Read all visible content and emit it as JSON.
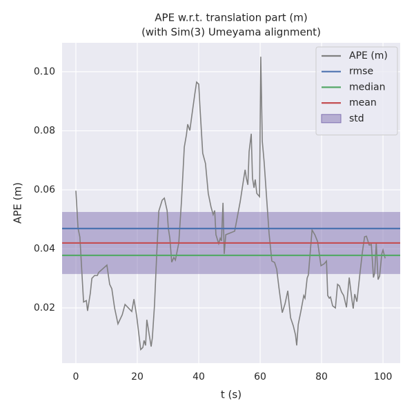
{
  "chart_data": {
    "type": "line",
    "title": "APE w.r.t. translation part (m)",
    "subtitle": "(with Sim(3) Umeyama alignment)",
    "xlabel": "t (s)",
    "ylabel": "APE (m)",
    "xlim": [
      -4.49,
      105.6
    ],
    "ylim": [
      0.0013,
      0.1098
    ],
    "xticks": [
      0,
      20,
      40,
      60,
      80,
      100
    ],
    "yticks": [
      0.02,
      0.04,
      0.06,
      0.08,
      {
        "value": 0.1,
        "label": "0.10"
      }
    ],
    "grid": true,
    "legend": "upper right",
    "series": [
      {
        "name": "APE (m)",
        "color": "#808080",
        "x": [
          0,
          0.7,
          1.3,
          2.5,
          3.4,
          3.8,
          4.7,
          5.2,
          6.1,
          7.0,
          7.4,
          10.1,
          11.0,
          11.7,
          12.6,
          13.7,
          15.1,
          16.0,
          18.2,
          18.9,
          19.8,
          21.1,
          21.8,
          22.2,
          22.7,
          23.1,
          24.5,
          24.9,
          25.6,
          26.3,
          27.0,
          28.1,
          28.8,
          29.7,
          30.1,
          30.6,
          31.2,
          31.9,
          32.4,
          33.5,
          34.4,
          35.3,
          36.0,
          36.4,
          37.1,
          37.8,
          38.7,
          39.3,
          40.0,
          40.4,
          41.3,
          42.2,
          43.1,
          44.0,
          44.7,
          45.2,
          45.6,
          46.5,
          47.0,
          47.4,
          47.9,
          48.3,
          48.8,
          51.7,
          53.5,
          54.6,
          55.1,
          55.5,
          56.0,
          56.4,
          57.1,
          57.5,
          58.0,
          58.4,
          58.9,
          59.8,
          60.2,
          60.7,
          61.3,
          62.0,
          62.9,
          63.8,
          64.7,
          65.4,
          66.1,
          67.2,
          68.1,
          69.0,
          69.9,
          70.8,
          71.5,
          71.9,
          72.4,
          73.3,
          74.2,
          74.6,
          75.3,
          75.7,
          76.9,
          77.8,
          78.7,
          79.8,
          80.9,
          81.6,
          82.0,
          82.5,
          82.9,
          83.6,
          84.5,
          85.2,
          85.8,
          86.5,
          87.2,
          88.1,
          89.0,
          89.9,
          90.3,
          90.8,
          91.5,
          92.4,
          93.3,
          94.0,
          94.6,
          95.5,
          96.2,
          96.9,
          97.3,
          97.8,
          98.4,
          98.9,
          99.6,
          100.0,
          100.7
        ],
        "values": [
          0.0597,
          0.047,
          0.044,
          0.022,
          0.0225,
          0.019,
          0.025,
          0.03,
          0.031,
          0.031,
          0.032,
          0.0345,
          0.028,
          0.0265,
          0.02,
          0.0146,
          0.0177,
          0.0212,
          0.0188,
          0.023,
          0.0172,
          0.0059,
          0.0066,
          0.009,
          0.0073,
          0.016,
          0.0069,
          0.0099,
          0.021,
          0.0378,
          0.0528,
          0.0565,
          0.0572,
          0.053,
          0.047,
          0.0436,
          0.0355,
          0.0371,
          0.0362,
          0.042,
          0.0565,
          0.0745,
          0.0787,
          0.0822,
          0.0801,
          0.0855,
          0.0923,
          0.0965,
          0.0958,
          0.088,
          0.0724,
          0.0689,
          0.0588,
          0.0542,
          0.0516,
          0.053,
          0.0448,
          0.0418,
          0.0436,
          0.0427,
          0.0556,
          0.0383,
          0.0448,
          0.046,
          0.056,
          0.0635,
          0.0668,
          0.064,
          0.0617,
          0.0729,
          0.079,
          0.064,
          0.0607,
          0.0635,
          0.0588,
          0.0577,
          0.1051,
          0.0764,
          0.0694,
          0.0588,
          0.0453,
          0.0359,
          0.0354,
          0.0331,
          0.027,
          0.0184,
          0.0214,
          0.0258,
          0.0167,
          0.0139,
          0.0109,
          0.0073,
          0.0144,
          0.0191,
          0.0242,
          0.0233,
          0.0301,
          0.0312,
          0.0464,
          0.0448,
          0.0425,
          0.0343,
          0.035,
          0.0359,
          0.0242,
          0.0233,
          0.0237,
          0.0207,
          0.02,
          0.028,
          0.0275,
          0.0254,
          0.0242,
          0.0202,
          0.0303,
          0.0226,
          0.0198,
          0.0247,
          0.0221,
          0.0308,
          0.039,
          0.0441,
          0.0443,
          0.0413,
          0.0415,
          0.0303,
          0.0319,
          0.042,
          0.0296,
          0.0308,
          0.0383,
          0.0396,
          0.0368
        ]
      }
    ],
    "stats": [
      {
        "name": "rmse",
        "color": "#4c72b0",
        "value": 0.0469
      },
      {
        "name": "median",
        "color": "#55a868",
        "value": 0.0378
      },
      {
        "name": "mean",
        "color": "#c44e52",
        "value": 0.042
      }
    ],
    "std": {
      "name": "std",
      "color": "#8172b2",
      "value": 0.0105
    }
  }
}
